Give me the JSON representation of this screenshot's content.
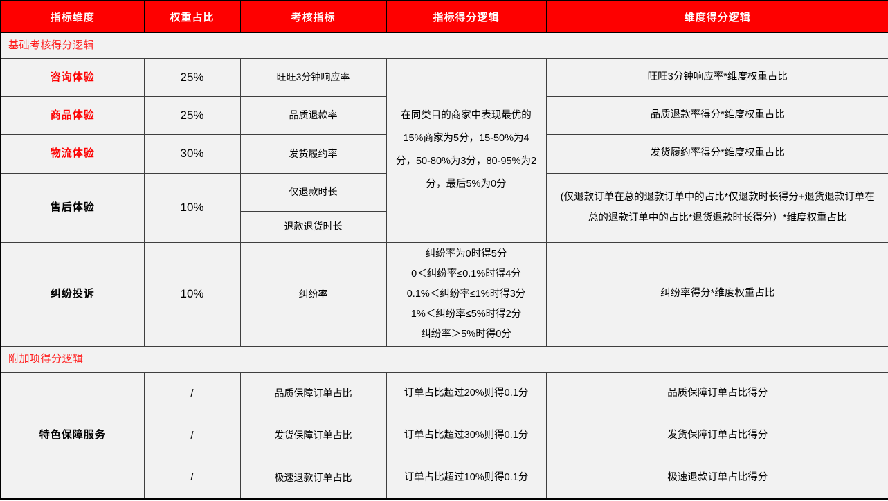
{
  "table": {
    "headers": [
      "指标维度",
      "权重占比",
      "考核指标",
      "指标得分逻辑",
      "维度得分逻辑"
    ],
    "accent_colors": {
      "header_background": "#fe0000",
      "header_text": "#ffffff",
      "section_title_text": "#ff1f1f",
      "dimension_red_text": "#fe0000",
      "body_background": "#f2f2f2"
    },
    "base_section_title": "基础考核得分逻辑",
    "merged_score_logic": "在同类目的商家中表现最优的15%商家为5分，15-50%为4分，50-80%为3分，80-95%为2分，最后5%为0分",
    "rows": {
      "consult": {
        "dimension": "咨询体验",
        "weight": "25%",
        "indicator": "旺旺3分钟响应率",
        "dim_logic": "旺旺3分钟响应率*维度权重占比"
      },
      "product": {
        "dimension": "商品体验",
        "weight": "25%",
        "indicator": "品质退款率",
        "dim_logic": "品质退款率得分*维度权重占比"
      },
      "logistics": {
        "dimension": "物流体验",
        "weight": "30%",
        "indicator": "发货履约率",
        "dim_logic": "发货履约率得分*维度权重占比"
      },
      "aftersale": {
        "dimension": "售后体验",
        "weight": "10%",
        "indicator_1": "仅退款时长",
        "indicator_2": "退款退货时长",
        "dim_logic": "(仅退款订单在总的退款订单中的占比*仅退款时长得分+退货退款订单在总的退款订单中的占比*退货退款时长得分）*维度权重占比"
      },
      "dispute": {
        "dimension": "纠纷投诉",
        "weight": "10%",
        "indicator": "纠纷率",
        "score_lines": [
          "纠纷率为0时得5分",
          "0＜纠纷率≤0.1%时得4分",
          "0.1%＜纠纷率≤1%时得3分",
          "1%＜纠纷率≤5%时得2分",
          "纠纷率＞5%时得0分"
        ],
        "dim_logic": "纠纷率得分*维度权重占比"
      }
    },
    "addon_section_title": "附加项得分逻辑",
    "addon": {
      "dimension": "特色保障服务",
      "rows": [
        {
          "weight": "/",
          "indicator": "品质保障订单占比",
          "score_logic": "订单占比超过20%则得0.1分",
          "dim_logic": "品质保障订单占比得分"
        },
        {
          "weight": "/",
          "indicator": "发货保障订单占比",
          "score_logic": "订单占比超过30%则得0.1分",
          "dim_logic": "发货保障订单占比得分"
        },
        {
          "weight": "/",
          "indicator": "极速退款订单占比",
          "score_logic": "订单占比超过10%则得0.1分",
          "dim_logic": "极速退款订单占比得分"
        }
      ]
    }
  }
}
